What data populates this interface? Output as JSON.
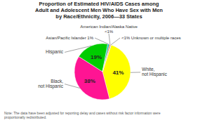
{
  "chart_data": {
    "type": "pie",
    "title": "Proportion of Estimated HIV/AIDS Cases among\nAdult and Adolescent Men Who Have Sex with Men\nby Race/Ethnicity, 2006—33 States",
    "categories": [
      "White,\nnot Hispanic",
      "Black,\nnot Hispanic",
      "Hispanic",
      "Asian/Pacific Islander 1%",
      "American Indian/Alaska Native\n<1%",
      "<1% Unknown or multiple races"
    ],
    "values": [
      41,
      38,
      19,
      1,
      0.7,
      0.3
    ],
    "value_labels": [
      "41%",
      "38%",
      "19%",
      null,
      null,
      null
    ],
    "colors": [
      "#FFFF00",
      "#FF1493",
      "#00CC00",
      "#00BBBB",
      "#FF6600",
      "#9999FF"
    ],
    "annotations": [
      "Note: The data have been adjusted for reporting delay and cases without risk factor information were\nproportionally redistributed."
    ]
  }
}
